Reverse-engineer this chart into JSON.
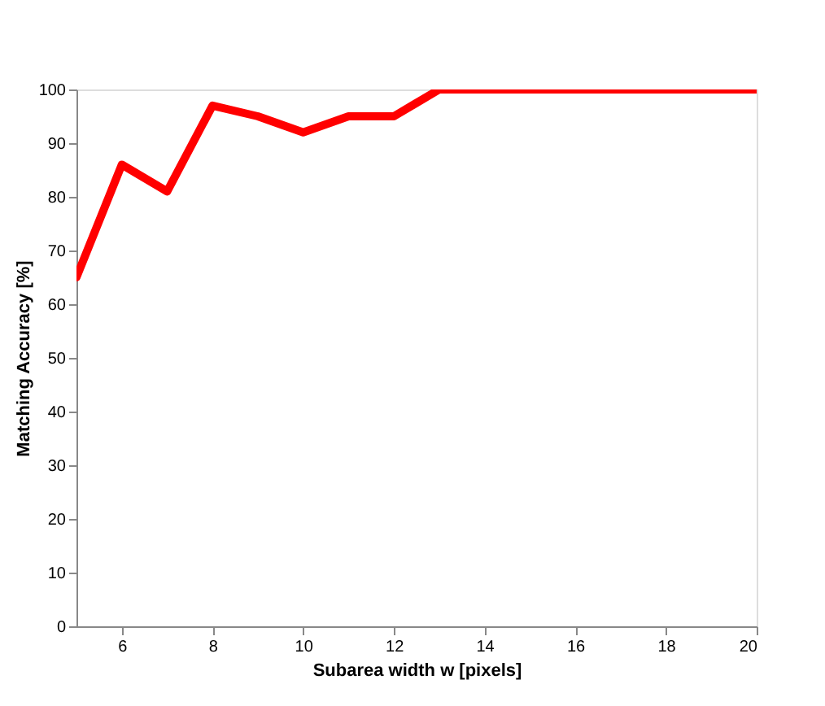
{
  "chart_data": {
    "type": "line",
    "xlabel": "Subarea width w [pixels]",
    "ylabel": "Matching Accuracy [%]",
    "x": [
      5,
      6,
      7,
      8,
      9,
      10,
      11,
      12,
      13,
      14,
      15,
      16,
      17,
      18,
      19,
      20
    ],
    "series": [
      {
        "color": "#ff0000",
        "values": [
          65,
          86,
          81,
          97,
          95,
          92,
          95,
          95,
          100,
          100,
          100,
          100,
          100,
          100,
          100,
          100
        ]
      }
    ],
    "xlim": [
      5,
      20
    ],
    "xticks": [
      6,
      8,
      10,
      12,
      14,
      16,
      18,
      20
    ],
    "ylim": [
      0,
      100
    ],
    "yticks": [
      0,
      10,
      20,
      30,
      40,
      50,
      60,
      70,
      80,
      90,
      100
    ],
    "grid": false,
    "marker": "none",
    "line_style": "solid"
  }
}
